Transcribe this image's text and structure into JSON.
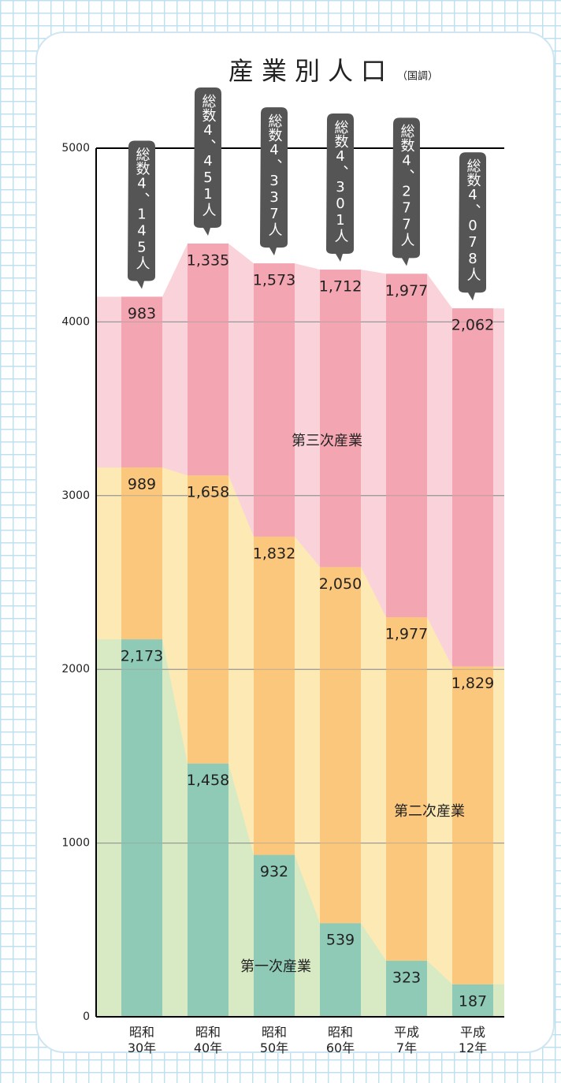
{
  "chart_data": {
    "type": "stacked-bar",
    "title": "産業別人口",
    "subtitle": "（国調）",
    "categories": [
      "昭和\n30年",
      "昭和\n40年",
      "昭和\n50年",
      "昭和\n60年",
      "平成\n7年",
      "平成\n12年"
    ],
    "series": [
      {
        "name": "第一次産業",
        "color": "#8fcab6",
        "area_color": "#d8eac4",
        "values": [
          2173,
          1458,
          932,
          539,
          323,
          187
        ],
        "value_labels": [
          "2,173",
          "1,458",
          "932",
          "539",
          "323",
          "187"
        ]
      },
      {
        "name": "第二次産業",
        "color": "#fbc77c",
        "area_color": "#fde9b4",
        "values": [
          989,
          1658,
          1832,
          2050,
          1977,
          1829
        ],
        "value_labels": [
          "989",
          "1,658",
          "1,832",
          "2,050",
          "1,977",
          "1,829"
        ]
      },
      {
        "name": "第三次産業",
        "color": "#f3a5b1",
        "area_color": "#fad3da",
        "values": [
          983,
          1335,
          1573,
          1712,
          1977,
          2062
        ],
        "value_labels": [
          "983",
          "1,335",
          "1,573",
          "1,712",
          "1,977",
          "2,062"
        ]
      }
    ],
    "total_labels": [
      "総数4、145人",
      "総数4、451人",
      "総数4、337人",
      "総数4、301人",
      "総数4、277人",
      "総数4、078人"
    ],
    "ylim": [
      0,
      5000
    ],
    "yticks": [
      0,
      1000,
      2000,
      3000,
      4000,
      5000
    ],
    "grid": true
  }
}
